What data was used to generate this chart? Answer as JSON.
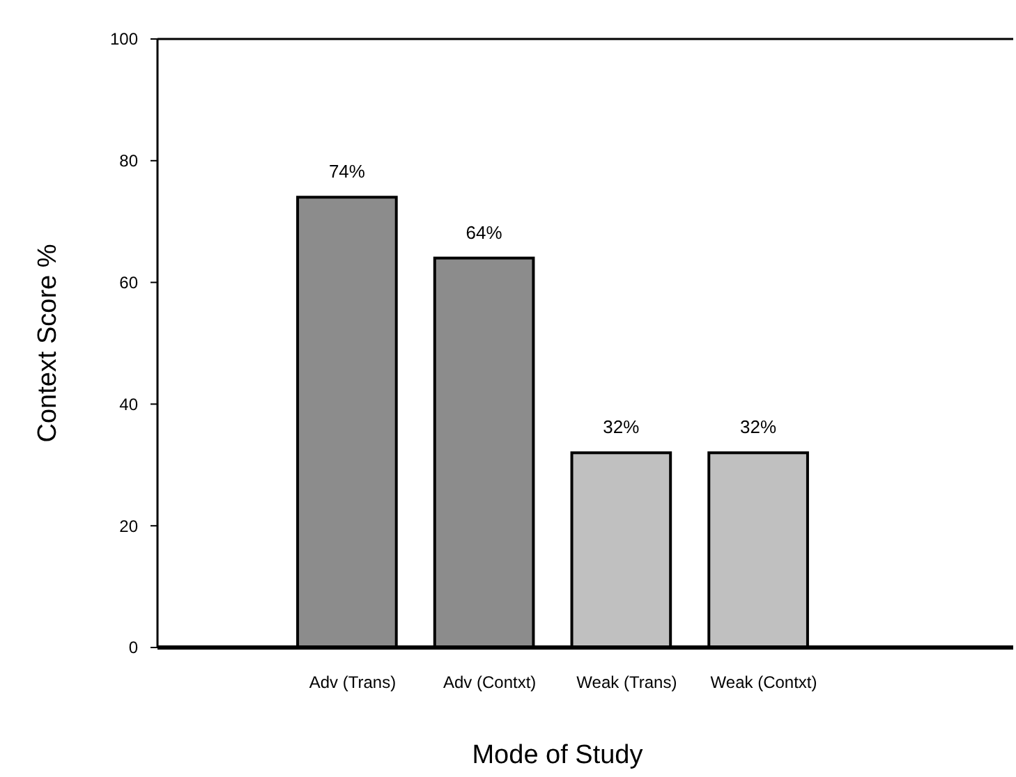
{
  "chart_data": {
    "type": "bar",
    "xlabel": "Mode of Study",
    "ylabel": "Context Score %",
    "categories": [
      "Adv (Trans)",
      "Adv (Contxt)",
      "Weak (Trans)",
      "Weak (Contxt)"
    ],
    "values": [
      74,
      64,
      32,
      32
    ],
    "colors": [
      "#8c8c8c",
      "#8c8c8c",
      "#c0c0c0",
      "#c0c0c0"
    ],
    "value_labels": [
      "74%",
      "64%",
      "32%",
      "32%"
    ],
    "ylim": [
      0,
      100
    ],
    "yticks": [
      0,
      20,
      40,
      60,
      80,
      100
    ],
    "grid": false
  }
}
